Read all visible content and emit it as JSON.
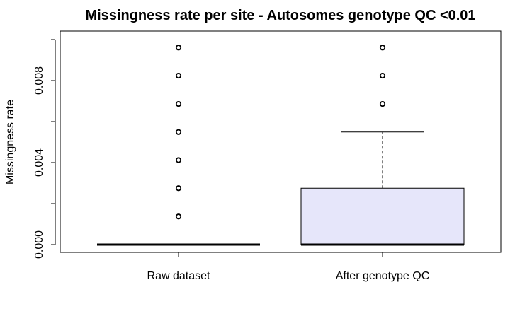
{
  "chart_data": {
    "type": "boxplot",
    "title": "Missingness rate per site - Autosomes genotype QC <0.01",
    "xlabel": "",
    "ylabel": "Missingness rate",
    "ylim": [
      0.0,
      0.01
    ],
    "yticks": [
      0.0,
      0.002,
      0.004,
      0.006,
      0.008,
      0.01
    ],
    "ytick_labels": [
      "0.000",
      "0.004",
      "0.008"
    ],
    "grid": false,
    "categories": [
      "Raw dataset",
      "After genotype QC"
    ],
    "series": [
      {
        "category": "Raw dataset",
        "fill": "#ffffff",
        "whisker_low": 0.0,
        "q1": 0.0,
        "median": 0.0,
        "q3": 0.0,
        "whisker_high": 0.0,
        "outliers": [
          0.00137,
          0.00275,
          0.00412,
          0.00549,
          0.00686,
          0.00824,
          0.00961
        ]
      },
      {
        "category": "After genotype QC",
        "fill": "#e6e6fa",
        "whisker_low": 0.0,
        "q1": 0.0,
        "median": 0.0,
        "q3": 0.00275,
        "whisker_high": 0.00549,
        "outliers": [
          0.00686,
          0.00824,
          0.00961
        ]
      }
    ]
  }
}
